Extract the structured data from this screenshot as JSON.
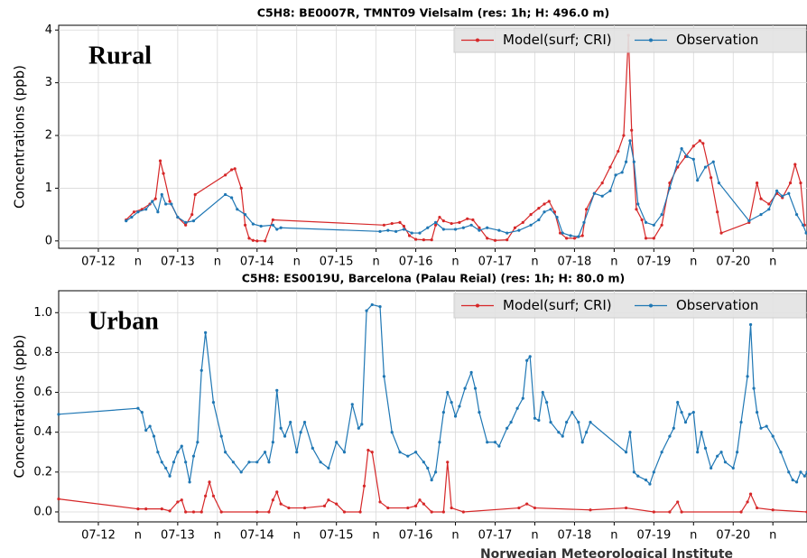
{
  "chart_data": [
    {
      "type": "line",
      "title": "C5H8: BE0007R, TMNT09 Vielsalm (res: 1h; H: 496.0 m)",
      "ylabel": "Concentrations (ppb)",
      "annotation": "Rural",
      "legend": "upper right",
      "grid": true,
      "xlim": [
        11.5,
        20.93
      ],
      "ylim": [
        -0.14,
        4.09
      ],
      "xticks": [
        {
          "value": 12,
          "label": "07-12"
        },
        {
          "value": 12.5,
          "label": "n"
        },
        {
          "value": 13,
          "label": "07-13"
        },
        {
          "value": 13.5,
          "label": "n"
        },
        {
          "value": 14,
          "label": "07-14"
        },
        {
          "value": 14.5,
          "label": "n"
        },
        {
          "value": 15,
          "label": "07-15"
        },
        {
          "value": 15.5,
          "label": "n"
        },
        {
          "value": 16,
          "label": "07-16"
        },
        {
          "value": 16.5,
          "label": "n"
        },
        {
          "value": 17,
          "label": "07-17"
        },
        {
          "value": 17.5,
          "label": "n"
        },
        {
          "value": 18,
          "label": "07-18"
        },
        {
          "value": 18.5,
          "label": "n"
        },
        {
          "value": 19,
          "label": "07-19"
        },
        {
          "value": 19.5,
          "label": "n"
        },
        {
          "value": 20,
          "label": "07-20"
        },
        {
          "value": 20.5,
          "label": "n"
        }
      ],
      "yticks": [
        0,
        1,
        2,
        3,
        4
      ],
      "series": [
        {
          "name": "Model(surf; CRI)",
          "color": "#d62728",
          "x": [
            12.35,
            12.45,
            12.55,
            12.65,
            12.72,
            12.78,
            12.82,
            12.9,
            13.0,
            13.1,
            13.18,
            13.22,
            13.6,
            13.68,
            13.72,
            13.8,
            13.85,
            13.9,
            13.95,
            14.0,
            14.1,
            14.2,
            15.6,
            15.7,
            15.8,
            15.85,
            15.92,
            16.0,
            16.1,
            16.2,
            16.25,
            16.3,
            16.35,
            16.45,
            16.55,
            16.65,
            16.72,
            16.8,
            16.9,
            17.0,
            17.15,
            17.25,
            17.35,
            17.45,
            17.55,
            17.62,
            17.68,
            17.75,
            17.82,
            17.9,
            18.0,
            18.1,
            18.15,
            18.25,
            18.35,
            18.45,
            18.55,
            18.62,
            18.68,
            18.72,
            18.78,
            18.85,
            18.9,
            19.0,
            19.1,
            19.2,
            19.3,
            19.4,
            19.5,
            19.58,
            19.62,
            19.72,
            19.8,
            19.85,
            20.2,
            20.3,
            20.35,
            20.45,
            20.55,
            20.62,
            20.72,
            20.78,
            20.85,
            20.9
          ],
          "values": [
            0.4,
            0.55,
            0.6,
            0.7,
            0.8,
            1.52,
            1.28,
            0.75,
            0.45,
            0.3,
            0.5,
            0.88,
            1.25,
            1.35,
            1.37,
            1.0,
            0.3,
            0.05,
            0.01,
            0.0,
            0.0,
            0.4,
            0.3,
            0.33,
            0.35,
            0.28,
            0.1,
            0.03,
            0.02,
            0.02,
            0.3,
            0.45,
            0.38,
            0.33,
            0.35,
            0.42,
            0.4,
            0.25,
            0.05,
            0.01,
            0.02,
            0.25,
            0.35,
            0.5,
            0.62,
            0.7,
            0.75,
            0.55,
            0.15,
            0.05,
            0.05,
            0.1,
            0.6,
            0.9,
            1.1,
            1.4,
            1.7,
            2.0,
            3.9,
            2.1,
            0.6,
            0.4,
            0.05,
            0.05,
            0.3,
            1.1,
            1.4,
            1.6,
            1.8,
            1.9,
            1.85,
            1.2,
            0.55,
            0.15,
            0.35,
            1.1,
            0.8,
            0.7,
            0.9,
            0.82,
            1.1,
            1.45,
            1.1,
            0.3
          ]
        },
        {
          "name": "Observation",
          "color": "#1f77b4",
          "x": [
            12.35,
            12.42,
            12.5,
            12.6,
            12.68,
            12.75,
            12.8,
            12.85,
            12.92,
            13.0,
            13.1,
            13.2,
            13.6,
            13.68,
            13.75,
            13.85,
            13.95,
            14.05,
            14.2,
            14.25,
            14.3,
            15.55,
            15.65,
            15.75,
            15.85,
            15.95,
            16.05,
            16.15,
            16.25,
            16.35,
            16.5,
            16.6,
            16.7,
            16.8,
            16.9,
            17.05,
            17.15,
            17.3,
            17.45,
            17.55,
            17.62,
            17.7,
            17.78,
            17.85,
            17.95,
            18.05,
            18.12,
            18.25,
            18.35,
            18.45,
            18.52,
            18.6,
            18.65,
            18.7,
            18.75,
            18.8,
            18.9,
            19.0,
            19.1,
            19.2,
            19.3,
            19.35,
            19.42,
            19.5,
            19.55,
            19.65,
            19.75,
            19.82,
            20.2,
            20.35,
            20.45,
            20.55,
            20.62,
            20.7,
            20.8,
            20.88,
            20.92
          ],
          "values": [
            0.38,
            0.45,
            0.55,
            0.6,
            0.75,
            0.55,
            0.88,
            0.7,
            0.7,
            0.45,
            0.35,
            0.38,
            0.88,
            0.82,
            0.6,
            0.5,
            0.32,
            0.28,
            0.3,
            0.22,
            0.25,
            0.18,
            0.2,
            0.18,
            0.22,
            0.15,
            0.15,
            0.25,
            0.35,
            0.22,
            0.22,
            0.25,
            0.3,
            0.2,
            0.25,
            0.2,
            0.15,
            0.2,
            0.3,
            0.4,
            0.55,
            0.6,
            0.45,
            0.15,
            0.1,
            0.08,
            0.35,
            0.9,
            0.85,
            0.95,
            1.25,
            1.3,
            1.5,
            1.9,
            1.5,
            0.7,
            0.35,
            0.3,
            0.5,
            1.0,
            1.5,
            1.75,
            1.6,
            1.55,
            1.15,
            1.4,
            1.5,
            1.1,
            0.38,
            0.5,
            0.6,
            0.95,
            0.85,
            0.9,
            0.5,
            0.3,
            0.15
          ]
        }
      ]
    },
    {
      "type": "line",
      "title": "C5H8: ES0019U, Barcelona (Palau Reial) (res: 1h; H: 80.0 m)",
      "ylabel": "Concentrations (ppb)",
      "annotation": "Urban",
      "legend": "upper right",
      "grid": true,
      "xlim": [
        11.5,
        20.93
      ],
      "ylim": [
        -0.05,
        1.11
      ],
      "xticks": [
        {
          "value": 12,
          "label": "07-12"
        },
        {
          "value": 12.5,
          "label": "n"
        },
        {
          "value": 13,
          "label": "07-13"
        },
        {
          "value": 13.5,
          "label": "n"
        },
        {
          "value": 14,
          "label": "07-14"
        },
        {
          "value": 14.5,
          "label": "n"
        },
        {
          "value": 15,
          "label": "07-15"
        },
        {
          "value": 15.5,
          "label": "n"
        },
        {
          "value": 16,
          "label": "07-16"
        },
        {
          "value": 16.5,
          "label": "n"
        },
        {
          "value": 17,
          "label": "07-17"
        },
        {
          "value": 17.5,
          "label": "n"
        },
        {
          "value": 18,
          "label": "07-18"
        },
        {
          "value": 18.5,
          "label": "n"
        },
        {
          "value": 19,
          "label": "07-19"
        },
        {
          "value": 19.5,
          "label": "n"
        },
        {
          "value": 20,
          "label": "07-20"
        },
        {
          "value": 20.5,
          "label": "n"
        }
      ],
      "yticks": [
        {
          "value": 0,
          "label": "0.0"
        },
        {
          "value": 0.2,
          "label": "0.2"
        },
        {
          "value": 0.4,
          "label": "0.4"
        },
        {
          "value": 0.6,
          "label": "0.6"
        },
        {
          "value": 0.8,
          "label": "0.8"
        },
        {
          "value": 1,
          "label": "1.0"
        }
      ],
      "series": [
        {
          "name": "Model(surf; CRI)",
          "color": "#d62728",
          "x": [
            11.5,
            12.5,
            12.6,
            12.8,
            12.9,
            13.0,
            13.05,
            13.1,
            13.2,
            13.3,
            13.35,
            13.4,
            13.45,
            13.55,
            14.0,
            14.15,
            14.2,
            14.25,
            14.3,
            14.4,
            14.6,
            14.85,
            14.9,
            15.0,
            15.1,
            15.3,
            15.35,
            15.4,
            15.45,
            15.55,
            15.65,
            15.9,
            16.0,
            16.05,
            16.1,
            16.2,
            16.35,
            16.4,
            16.45,
            16.6,
            17.3,
            17.4,
            17.5,
            18.2,
            18.65,
            19.0,
            19.2,
            19.3,
            19.35,
            20.1,
            20.18,
            20.22,
            20.3,
            20.5,
            20.93
          ],
          "values": [
            0.065,
            0.015,
            0.015,
            0.015,
            0.005,
            0.05,
            0.06,
            0.0,
            0.0,
            0.0,
            0.08,
            0.15,
            0.08,
            0.0,
            0.0,
            0.0,
            0.06,
            0.1,
            0.04,
            0.02,
            0.02,
            0.03,
            0.06,
            0.04,
            0.0,
            0.0,
            0.13,
            0.31,
            0.3,
            0.05,
            0.02,
            0.02,
            0.03,
            0.06,
            0.04,
            0.0,
            0.0,
            0.25,
            0.02,
            0.0,
            0.02,
            0.04,
            0.02,
            0.01,
            0.02,
            0.0,
            0.0,
            0.05,
            0.0,
            0.0,
            0.05,
            0.09,
            0.02,
            0.01,
            0.0
          ]
        },
        {
          "name": "Observation",
          "color": "#1f77b4",
          "x": [
            11.5,
            12.5,
            12.55,
            12.6,
            12.65,
            12.7,
            12.75,
            12.8,
            12.85,
            12.9,
            12.95,
            13.0,
            13.05,
            13.1,
            13.15,
            13.2,
            13.25,
            13.3,
            13.35,
            13.45,
            13.55,
            13.6,
            13.7,
            13.8,
            13.9,
            14.0,
            14.1,
            14.15,
            14.2,
            14.25,
            14.3,
            14.35,
            14.42,
            14.5,
            14.55,
            14.6,
            14.7,
            14.8,
            14.9,
            15.0,
            15.1,
            15.2,
            15.28,
            15.32,
            15.38,
            15.45,
            15.55,
            15.6,
            15.7,
            15.8,
            15.9,
            16.0,
            16.1,
            16.15,
            16.2,
            16.25,
            16.3,
            16.35,
            16.4,
            16.45,
            16.5,
            16.55,
            16.62,
            16.7,
            16.75,
            16.8,
            16.9,
            17.0,
            17.05,
            17.15,
            17.2,
            17.28,
            17.35,
            17.4,
            17.44,
            17.5,
            17.55,
            17.6,
            17.65,
            17.7,
            17.8,
            17.85,
            17.9,
            17.97,
            18.05,
            18.1,
            18.15,
            18.2,
            18.65,
            18.7,
            18.75,
            18.8,
            18.9,
            18.95,
            19.0,
            19.1,
            19.2,
            19.25,
            19.3,
            19.35,
            19.4,
            19.45,
            19.5,
            19.55,
            19.6,
            19.65,
            19.72,
            19.8,
            19.85,
            19.9,
            20.0,
            20.05,
            20.1,
            20.18,
            20.22,
            20.26,
            20.3,
            20.35,
            20.42,
            20.5,
            20.6,
            20.7,
            20.75,
            20.8,
            20.85,
            20.9,
            20.93
          ],
          "values": [
            0.49,
            0.52,
            0.5,
            0.41,
            0.43,
            0.38,
            0.3,
            0.25,
            0.22,
            0.18,
            0.25,
            0.3,
            0.33,
            0.25,
            0.15,
            0.28,
            0.35,
            0.71,
            0.9,
            0.55,
            0.38,
            0.3,
            0.25,
            0.2,
            0.25,
            0.25,
            0.3,
            0.25,
            0.35,
            0.61,
            0.42,
            0.38,
            0.45,
            0.3,
            0.4,
            0.45,
            0.32,
            0.25,
            0.22,
            0.35,
            0.3,
            0.54,
            0.42,
            0.44,
            1.01,
            1.04,
            1.03,
            0.68,
            0.4,
            0.3,
            0.28,
            0.3,
            0.25,
            0.22,
            0.16,
            0.2,
            0.35,
            0.5,
            0.6,
            0.55,
            0.48,
            0.53,
            0.62,
            0.7,
            0.62,
            0.5,
            0.35,
            0.35,
            0.33,
            0.42,
            0.45,
            0.52,
            0.57,
            0.76,
            0.78,
            0.47,
            0.46,
            0.6,
            0.55,
            0.45,
            0.4,
            0.38,
            0.45,
            0.5,
            0.45,
            0.35,
            0.4,
            0.45,
            0.3,
            0.4,
            0.2,
            0.18,
            0.16,
            0.14,
            0.2,
            0.3,
            0.38,
            0.42,
            0.55,
            0.5,
            0.45,
            0.49,
            0.5,
            0.3,
            0.4,
            0.32,
            0.22,
            0.28,
            0.3,
            0.25,
            0.22,
            0.3,
            0.45,
            0.68,
            0.94,
            0.62,
            0.5,
            0.42,
            0.43,
            0.38,
            0.3,
            0.2,
            0.16,
            0.15,
            0.2,
            0.18,
            0.2
          ]
        }
      ]
    }
  ],
  "footer": "Norwegian Meteorological Institute"
}
